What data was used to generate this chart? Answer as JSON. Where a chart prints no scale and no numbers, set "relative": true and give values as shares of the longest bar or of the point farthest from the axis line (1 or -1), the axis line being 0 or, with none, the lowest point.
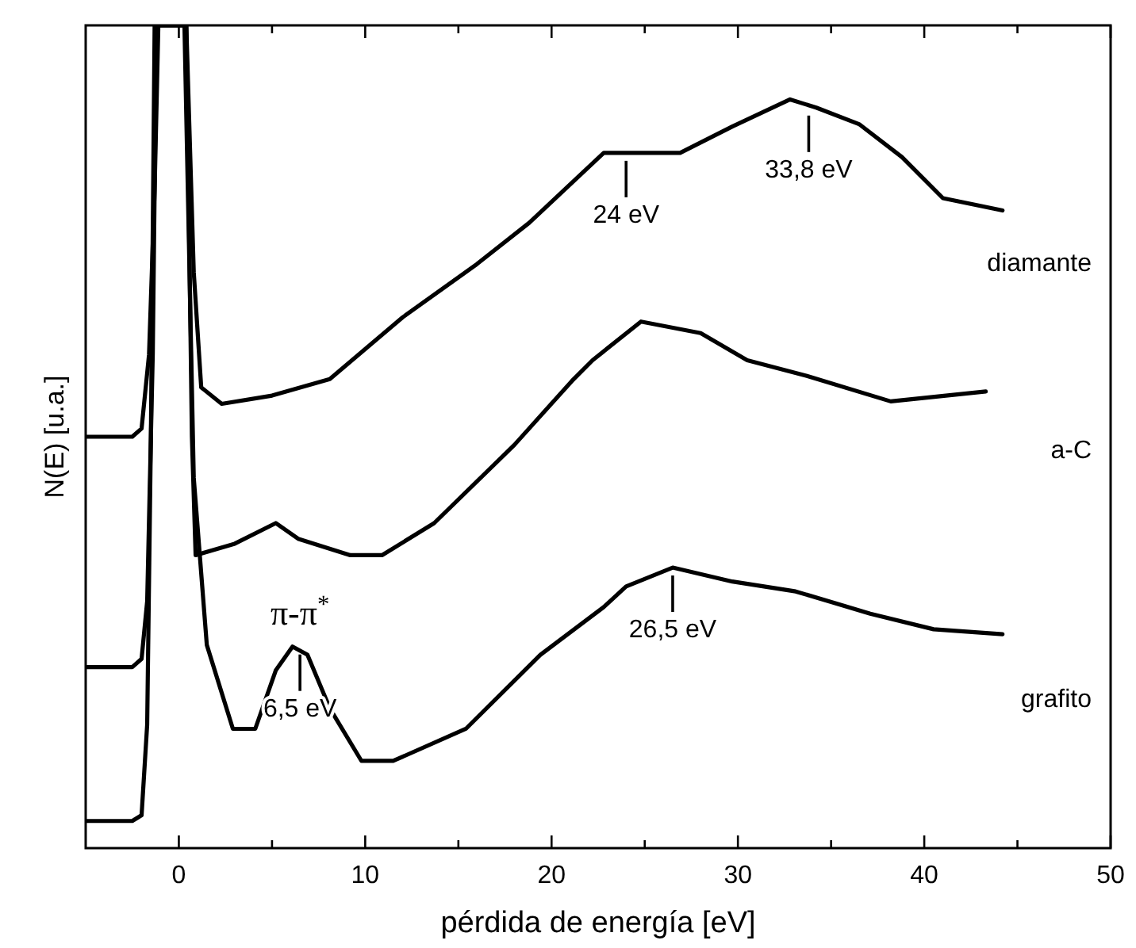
{
  "chart_data": {
    "type": "line",
    "relative": true,
    "xlabel": "pérdida de energía [eV]",
    "ylabel": "N(E) [u.a.]",
    "xlim": [
      -5,
      50
    ],
    "xticks": [
      0,
      {
        "value": 5,
        "label": null
      },
      10,
      {
        "value": 15,
        "label": null
      },
      20,
      {
        "value": 25,
        "label": null
      },
      30,
      {
        "value": 35,
        "label": null
      },
      40,
      {
        "value": 45,
        "label": null
      },
      50
    ],
    "tick_labels": "x",
    "series": [
      {
        "name": "diamante",
        "color": "#000000",
        "x": [
          -5,
          -2.5,
          -2,
          -1.6,
          -1.3,
          -1.1,
          0.4,
          0.8,
          1.2,
          2.3,
          5,
          8.1,
          12,
          16,
          18.8,
          22.8,
          24,
          26.9,
          29.7,
          32.8,
          34.2,
          36.5,
          38.8,
          41,
          44.2
        ],
        "values": [
          0.5,
          0.5,
          0.51,
          0.6,
          0.8,
          1,
          1,
          0.7,
          0.56,
          0.54,
          0.55,
          0.57,
          0.645,
          0.71,
          0.76,
          0.845,
          0.845,
          0.845,
          0.877,
          0.91,
          0.9,
          0.88,
          0.84,
          0.79,
          0.775
        ]
      },
      {
        "name": "a-C",
        "color": "#000000",
        "x": [
          -5,
          -2.5,
          -2,
          -1.7,
          -1.4,
          -1.2,
          0.4,
          0.7,
          0.9,
          3,
          5.2,
          6.4,
          9.2,
          10.9,
          13.7,
          18,
          21.1,
          22.2,
          24.8,
          28,
          30.5,
          33.7,
          38.2,
          43.3
        ],
        "values": [
          0.22,
          0.22,
          0.23,
          0.3,
          0.6,
          1,
          1,
          0.5,
          0.356,
          0.37,
          0.395,
          0.376,
          0.356,
          0.356,
          0.395,
          0.49,
          0.568,
          0.593,
          0.64,
          0.626,
          0.593,
          0.574,
          0.543,
          0.555
        ]
      },
      {
        "name": "grafito",
        "color": "#000000",
        "x": [
          -5,
          -2.5,
          -2,
          -1.7,
          -1.5,
          -1.3,
          0.3,
          0.8,
          1.5,
          2.9,
          4.1,
          5.2,
          6.1,
          6.9,
          8.1,
          9.8,
          11.5,
          15.4,
          19.4,
          22.8,
          24,
          26.5,
          29.7,
          33.1,
          37.1,
          40.5,
          44.2
        ],
        "values": [
          0.033,
          0.033,
          0.04,
          0.15,
          0.5,
          1,
          1,
          0.45,
          0.247,
          0.145,
          0.145,
          0.216,
          0.245,
          0.235,
          0.17,
          0.106,
          0.106,
          0.145,
          0.235,
          0.293,
          0.318,
          0.341,
          0.324,
          0.312,
          0.285,
          0.266,
          0.26
        ]
      }
    ],
    "annotations": [
      {
        "text": "24 eV",
        "x": 24,
        "y": 0.845
      },
      {
        "text": "33,8 eV",
        "x": 33.8,
        "y": 0.9
      },
      {
        "text": "6,5 eV",
        "x": 6.5,
        "y": 0.245
      },
      {
        "text": "π-π$^{*}$",
        "x": 6.5,
        "y": 0.245
      },
      {
        "text": "26,5 eV",
        "x": 26.5,
        "y": 0.341
      }
    ]
  }
}
